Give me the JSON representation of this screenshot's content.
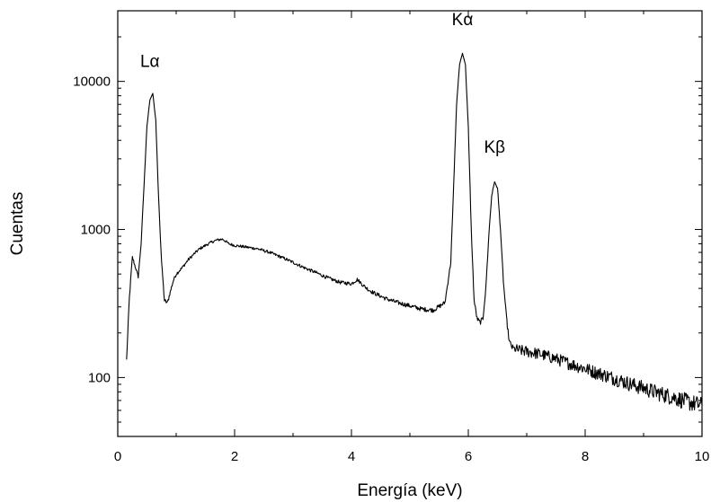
{
  "chart_data": {
    "type": "line",
    "xlabel": "Energía (keV)",
    "ylabel": "Cuentas",
    "xlim": [
      0,
      10
    ],
    "ylim": [
      40,
      30000
    ],
    "yscale": "log",
    "grid": false,
    "x_ticks": [
      0,
      2,
      4,
      6,
      8,
      10
    ],
    "x_tick_labels": [
      "0",
      "2",
      "4",
      "6",
      "8",
      "10"
    ],
    "y_ticks": [
      100,
      1000,
      10000
    ],
    "y_tick_labels": [
      "100",
      "1000",
      "10000"
    ],
    "annotations": [
      {
        "text": "Lα",
        "x": 0.55,
        "y": 12500
      },
      {
        "text": "Kα",
        "x": 5.9,
        "y": 24000
      },
      {
        "text": "Kβ",
        "x": 6.45,
        "y": 3300
      }
    ],
    "series": [
      {
        "x": [
          0.15,
          0.2,
          0.25,
          0.3,
          0.35,
          0.4,
          0.45,
          0.5,
          0.55,
          0.6,
          0.65,
          0.7,
          0.75,
          0.8,
          0.85,
          0.9,
          0.95,
          1.0,
          1.1,
          1.2,
          1.3,
          1.4,
          1.5,
          1.6,
          1.7,
          1.8,
          1.9,
          2.0,
          2.2,
          2.4,
          2.6,
          2.8,
          3.0,
          3.2,
          3.4,
          3.6,
          3.8,
          4.0,
          4.1,
          4.2,
          4.3,
          4.4,
          4.6,
          4.8,
          5.0,
          5.2,
          5.4,
          5.6,
          5.7,
          5.75,
          5.8,
          5.85,
          5.9,
          5.95,
          6.0,
          6.05,
          6.1,
          6.15,
          6.2,
          6.25,
          6.3,
          6.35,
          6.4,
          6.45,
          6.5,
          6.55,
          6.6,
          6.65,
          6.7,
          6.75,
          6.8,
          7.0,
          7.2,
          7.4,
          7.6,
          7.8,
          8.0,
          8.2,
          8.4,
          8.6,
          8.8,
          9.0,
          9.2,
          9.4,
          9.6,
          9.8,
          10.0
        ],
        "y": [
          130,
          350,
          650,
          560,
          480,
          800,
          2000,
          5000,
          7500,
          8300,
          5500,
          1600,
          600,
          330,
          320,
          380,
          450,
          500,
          550,
          620,
          680,
          740,
          780,
          820,
          850,
          860,
          800,
          780,
          760,
          740,
          700,
          650,
          600,
          550,
          510,
          470,
          440,
          430,
          460,
          420,
          390,
          370,
          340,
          320,
          305,
          290,
          285,
          320,
          600,
          2000,
          7000,
          13000,
          15500,
          13000,
          5000,
          1000,
          330,
          250,
          235,
          250,
          400,
          900,
          1700,
          2100,
          1900,
          1000,
          450,
          260,
          175,
          160,
          155,
          150,
          145,
          138,
          130,
          122,
          115,
          108,
          102,
          96,
          90,
          85,
          80,
          76,
          72,
          68,
          65
        ]
      }
    ]
  }
}
